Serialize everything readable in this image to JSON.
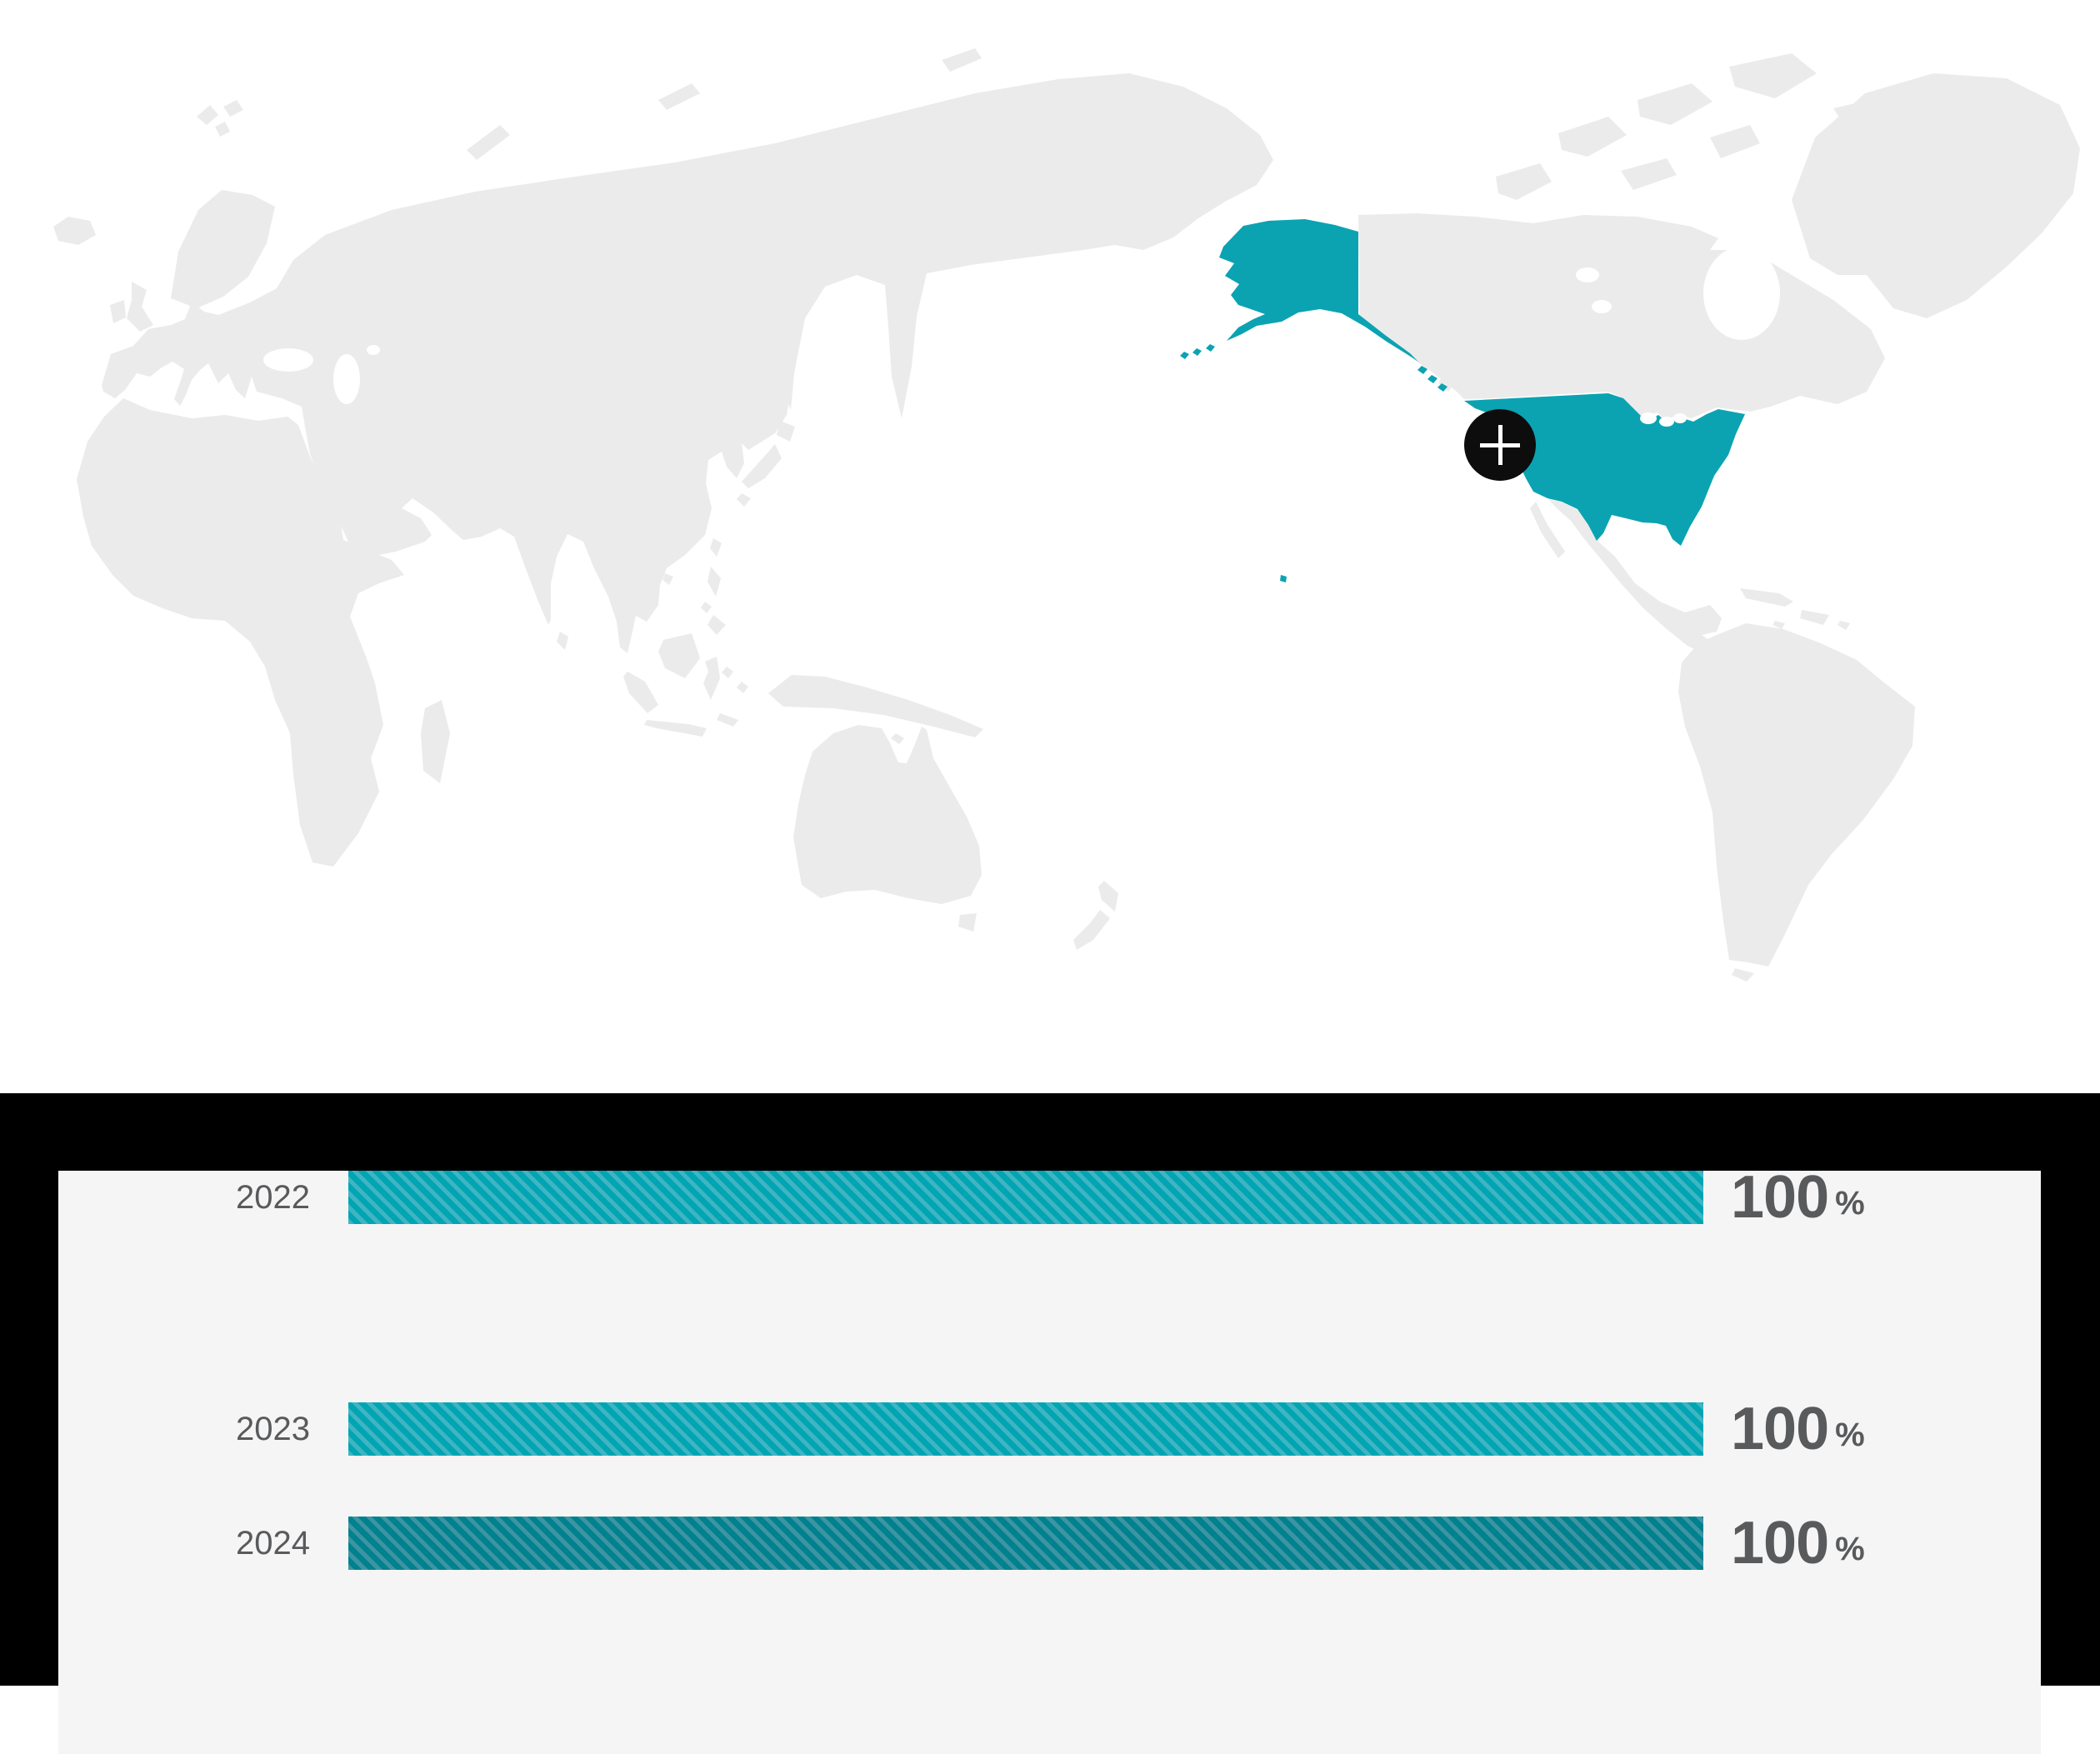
{
  "map": {
    "highlighted_regions": [
      "United States mainland",
      "Alaska",
      "Hawaii"
    ],
    "marker": {
      "icon": "plus",
      "glyph": "+"
    }
  },
  "chart_data": {
    "type": "bar",
    "orientation": "horizontal",
    "categories": [
      "2022",
      "2023",
      "2024"
    ],
    "values": [
      100,
      100,
      100
    ],
    "unit": "%",
    "xlim": [
      0,
      100
    ],
    "grid": false,
    "legend": null,
    "bar_styles": [
      "teal-striped",
      "teal-striped",
      "dark-teal-striped"
    ]
  },
  "colors": {
    "accent_teal": "#00a5b4",
    "accent_teal_stripe": "#40b5c1",
    "accent_teal_dark": "#00818f",
    "accent_teal_dark_stripe": "#3d95a1",
    "map_land": "#ebebeb",
    "map_highlight": "#0ba3b2",
    "marker_bg": "#0d0d0d",
    "footer_bg": "#000000",
    "card_bg": "#f5f5f6",
    "text": "#595a5c"
  }
}
